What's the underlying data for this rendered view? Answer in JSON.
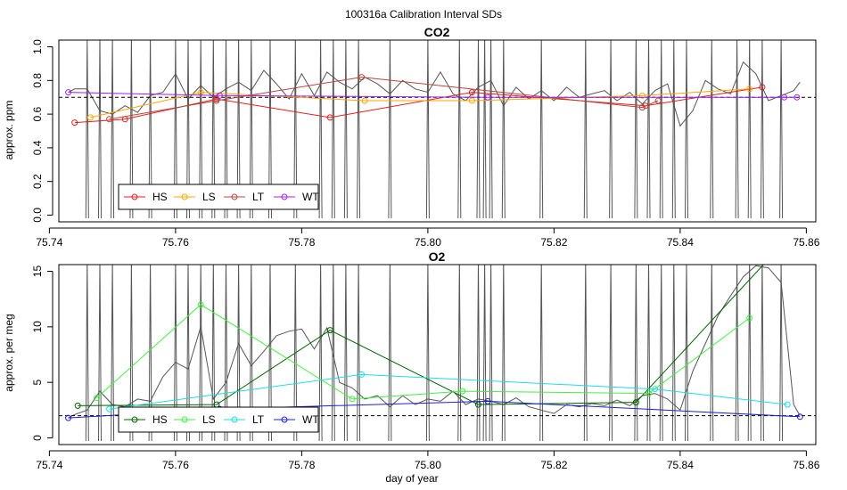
{
  "figure": {
    "title": "100316a   Calibration Interval SDs",
    "xlabel": "day of year"
  },
  "colors": {
    "frame": "#000000",
    "trace": "#555555",
    "ref": "#000000"
  },
  "chart_data": [
    {
      "type": "line",
      "title": "CO2",
      "ylabel": "approx. ppm",
      "xlim": [
        75.7415,
        75.8615
      ],
      "ylim": [
        -0.04,
        1.04
      ],
      "xticks": [
        75.74,
        75.76,
        75.78,
        75.8,
        75.82,
        75.84,
        75.86
      ],
      "xtick_labels": [
        "75.74",
        "75.76",
        "75.78",
        "75.80",
        "75.82",
        "75.84",
        "75.86"
      ],
      "yticks": [
        0.0,
        0.2,
        0.4,
        0.6,
        0.8,
        1.0
      ],
      "ytick_labels": [
        "0.0",
        "0.2",
        "0.4",
        "0.6",
        "0.8",
        "1.0"
      ],
      "reference_line": 0.7,
      "legend_position": "bottom-left",
      "series": [
        {
          "name": "HS",
          "color": "#e0201e",
          "x": [
            75.744,
            75.752,
            75.7665,
            75.7845,
            75.807,
            75.8345,
            75.853
          ],
          "y": [
            0.55,
            0.57,
            0.69,
            0.58,
            0.73,
            0.65,
            0.76
          ]
        },
        {
          "name": "LS",
          "color": "#ffa500",
          "x": [
            75.7465,
            75.764,
            75.79,
            75.807,
            75.834,
            75.851
          ],
          "y": [
            0.58,
            0.73,
            0.68,
            0.68,
            0.71,
            0.75
          ]
        },
        {
          "name": "LT",
          "color": "#b8463c",
          "x": [
            75.7495,
            75.7665,
            75.7895,
            75.834,
            75.8365
          ],
          "y": [
            0.57,
            0.68,
            0.82,
            0.64,
            0.68
          ]
        },
        {
          "name": "WT",
          "color": "#a020f0",
          "x": [
            75.743,
            75.767,
            75.8095,
            75.8565,
            75.8585
          ],
          "y": [
            0.73,
            0.71,
            0.7,
            0.7,
            0.7
          ]
        }
      ],
      "trace": {
        "x": [
          75.743,
          75.744,
          75.746,
          75.748,
          75.75,
          75.752,
          75.754,
          75.756,
          75.758,
          75.76,
          75.762,
          75.764,
          75.766,
          75.768,
          75.77,
          75.772,
          75.774,
          75.776,
          75.778,
          75.78,
          75.782,
          75.784,
          75.786,
          75.788,
          75.79,
          75.792,
          75.794,
          75.796,
          75.798,
          75.8,
          75.802,
          75.804,
          75.806,
          75.808,
          75.81,
          75.812,
          75.814,
          75.816,
          75.818,
          75.82,
          75.822,
          75.824,
          75.826,
          75.828,
          75.83,
          75.832,
          75.834,
          75.836,
          75.838,
          75.84,
          75.842,
          75.844,
          75.846,
          75.848,
          75.85,
          75.852,
          75.854,
          75.856,
          75.858,
          75.859
        ],
        "y": [
          0.73,
          0.75,
          0.75,
          0.62,
          0.6,
          0.65,
          0.61,
          0.71,
          0.73,
          0.84,
          0.69,
          0.77,
          0.7,
          0.75,
          0.79,
          0.74,
          0.86,
          0.78,
          0.69,
          0.84,
          0.71,
          0.85,
          0.79,
          0.75,
          0.82,
          0.78,
          0.72,
          0.8,
          0.75,
          0.73,
          0.85,
          0.72,
          0.68,
          0.76,
          0.8,
          0.65,
          0.76,
          0.69,
          0.74,
          0.68,
          0.76,
          0.7,
          0.72,
          0.74,
          0.68,
          0.73,
          0.66,
          0.74,
          0.78,
          0.53,
          0.62,
          0.8,
          0.75,
          0.72,
          0.91,
          0.84,
          0.68,
          0.71,
          0.74,
          0.79
        ],
        "spikes_x": [
          75.746,
          75.748,
          75.75,
          75.753,
          75.756,
          75.76,
          75.762,
          75.764,
          75.766,
          75.768,
          75.77,
          75.772,
          75.775,
          75.779,
          75.783,
          75.785,
          75.787,
          75.789,
          75.794,
          75.8,
          75.805,
          75.808,
          75.809,
          75.81,
          75.812,
          75.818,
          75.825,
          75.829,
          75.833,
          75.835,
          75.837,
          75.839,
          75.841,
          75.845,
          75.849,
          75.851,
          75.853,
          75.856
        ]
      }
    },
    {
      "type": "line",
      "title": "O2",
      "ylabel": "approx. per meg",
      "xlim": [
        75.7415,
        75.8615
      ],
      "ylim": [
        -0.6,
        15.6
      ],
      "xticks": [
        75.74,
        75.76,
        75.78,
        75.8,
        75.82,
        75.84,
        75.86
      ],
      "xtick_labels": [
        "75.74",
        "75.76",
        "75.78",
        "75.80",
        "75.82",
        "75.84",
        "75.86"
      ],
      "yticks": [
        0,
        5,
        10,
        15
      ],
      "ytick_labels": [
        "0",
        "5",
        "10",
        "15"
      ],
      "reference_line": 2.0,
      "legend_position": "bottom-left",
      "series": [
        {
          "name": "HS",
          "color": "#006400",
          "x": [
            75.7445,
            75.7665,
            75.7845,
            75.808,
            75.833,
            75.8555
          ],
          "y": [
            2.9,
            3.0,
            9.7,
            3.0,
            3.2,
            17.0
          ]
        },
        {
          "name": "LS",
          "color": "#44ee44",
          "x": [
            75.7475,
            75.764,
            75.788,
            75.8055,
            75.835,
            75.851
          ],
          "y": [
            3.6,
            12.0,
            3.5,
            4.2,
            4.0,
            10.8
          ]
        },
        {
          "name": "LT",
          "color": "#22dddd",
          "x": [
            75.7495,
            75.7895,
            75.836,
            75.857
          ],
          "y": [
            2.6,
            5.7,
            4.4,
            3.0
          ]
        },
        {
          "name": "WT",
          "color": "#2020cc",
          "x": [
            75.743,
            75.767,
            75.8095,
            75.859
          ],
          "y": [
            1.8,
            2.6,
            3.3,
            1.9
          ]
        }
      ],
      "trace": {
        "x": [
          75.743,
          75.744,
          75.746,
          75.748,
          75.75,
          75.752,
          75.754,
          75.756,
          75.758,
          75.76,
          75.762,
          75.764,
          75.766,
          75.768,
          75.77,
          75.772,
          75.774,
          75.776,
          75.778,
          75.78,
          75.782,
          75.784,
          75.786,
          75.788,
          75.79,
          75.792,
          75.794,
          75.796,
          75.798,
          75.8,
          75.802,
          75.804,
          75.806,
          75.808,
          75.81,
          75.812,
          75.814,
          75.816,
          75.818,
          75.82,
          75.822,
          75.824,
          75.826,
          75.828,
          75.83,
          75.832,
          75.834,
          75.836,
          75.838,
          75.84,
          75.842,
          75.844,
          75.846,
          75.848,
          75.85,
          75.852,
          75.854,
          75.856,
          75.858,
          75.859
        ],
        "y": [
          1.8,
          2.1,
          2.5,
          4.2,
          3.0,
          2.8,
          3.5,
          3.3,
          5.5,
          6.8,
          6.2,
          10.0,
          3.5,
          5.0,
          8.5,
          6.5,
          7.8,
          9.2,
          9.6,
          9.8,
          8.0,
          9.9,
          5.0,
          4.5,
          3.5,
          3.8,
          2.8,
          3.8,
          3.0,
          3.5,
          3.3,
          4.2,
          3.0,
          3.5,
          3.3,
          3.0,
          3.6,
          2.8,
          2.5,
          2.2,
          3.0,
          2.8,
          3.1,
          2.9,
          3.4,
          2.9,
          3.8,
          4.0,
          3.5,
          2.5,
          6.0,
          8.5,
          11.0,
          12.8,
          14.5,
          15.5,
          15.3,
          14.0,
          3.0,
          2.0
        ],
        "spikes_x": [
          75.746,
          75.748,
          75.75,
          75.753,
          75.756,
          75.76,
          75.762,
          75.764,
          75.766,
          75.768,
          75.77,
          75.772,
          75.775,
          75.779,
          75.783,
          75.785,
          75.787,
          75.789,
          75.794,
          75.8,
          75.805,
          75.808,
          75.809,
          75.81,
          75.812,
          75.818,
          75.825,
          75.829,
          75.833,
          75.835,
          75.837,
          75.839,
          75.841,
          75.845,
          75.849,
          75.851,
          75.853,
          75.856
        ]
      }
    }
  ]
}
